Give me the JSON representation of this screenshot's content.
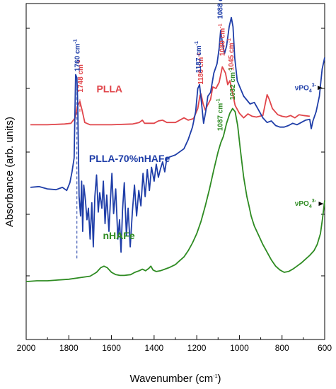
{
  "chart_data": {
    "type": "line",
    "xlabel_main": "Wavenumber (cm",
    "xlabel_sup": "-1",
    "xlabel_end": ")",
    "ylabel": "Absorbance (arb. units)",
    "xlim": [
      2000,
      600
    ],
    "x_reversed": true,
    "x_ticks": [
      "2000",
      "1800",
      "1600",
      "1400",
      "1200",
      "1000",
      "800",
      "600"
    ],
    "x_tick_values": [
      2000,
      1800,
      1600,
      1400,
      1200,
      1000,
      800,
      600
    ],
    "y_tick_labels_shown": false,
    "series": [
      {
        "name": "PLLA",
        "color": "#e0454a",
        "offset": 2.0,
        "points": [
          [
            1980,
            0.03
          ],
          [
            1900,
            0.03
          ],
          [
            1820,
            0.04
          ],
          [
            1790,
            0.05
          ],
          [
            1770,
            0.12
          ],
          [
            1760,
            0.27
          ],
          [
            1748,
            0.33
          ],
          [
            1738,
            0.22
          ],
          [
            1725,
            0.06
          ],
          [
            1700,
            0.03
          ],
          [
            1600,
            0.03
          ],
          [
            1500,
            0.04
          ],
          [
            1470,
            0.06
          ],
          [
            1455,
            0.09
          ],
          [
            1445,
            0.05
          ],
          [
            1400,
            0.05
          ],
          [
            1380,
            0.08
          ],
          [
            1360,
            0.09
          ],
          [
            1340,
            0.06
          ],
          [
            1300,
            0.06
          ],
          [
            1280,
            0.09
          ],
          [
            1260,
            0.12
          ],
          [
            1240,
            0.09
          ],
          [
            1215,
            0.11
          ],
          [
            1195,
            0.24
          ],
          [
            1185,
            0.41
          ],
          [
            1180,
            0.43
          ],
          [
            1170,
            0.3
          ],
          [
            1160,
            0.22
          ],
          [
            1150,
            0.28
          ],
          [
            1135,
            0.36
          ],
          [
            1125,
            0.52
          ],
          [
            1110,
            0.5
          ],
          [
            1095,
            0.58
          ],
          [
            1080,
            0.78
          ],
          [
            1065,
            0.7
          ],
          [
            1055,
            0.55
          ],
          [
            1045,
            0.6
          ],
          [
            1035,
            0.48
          ],
          [
            1020,
            0.28
          ],
          [
            1000,
            0.18
          ],
          [
            980,
            0.12
          ],
          [
            960,
            0.17
          ],
          [
            940,
            0.14
          ],
          [
            920,
            0.13
          ],
          [
            890,
            0.15
          ],
          [
            870,
            0.42
          ],
          [
            860,
            0.36
          ],
          [
            845,
            0.24
          ],
          [
            820,
            0.16
          ],
          [
            800,
            0.14
          ],
          [
            780,
            0.13
          ],
          [
            760,
            0.15
          ],
          [
            740,
            0.12
          ],
          [
            720,
            0.16
          ],
          [
            700,
            0.15
          ],
          [
            670,
            0.14
          ]
        ]
      },
      {
        "name": "PLLA-70%nHAFe",
        "color": "#1f3ea8",
        "offset": 1.0,
        "points": [
          [
            1980,
            0.22
          ],
          [
            1940,
            0.23
          ],
          [
            1900,
            0.2
          ],
          [
            1860,
            0.19
          ],
          [
            1830,
            0.22
          ],
          [
            1810,
            0.18
          ],
          [
            1795,
            0.28
          ],
          [
            1785,
            0.42
          ],
          [
            1775,
            0.6
          ],
          [
            1768,
            1.68
          ],
          [
            1762,
            1.64
          ],
          [
            1758,
            1.3
          ],
          [
            1752,
            0.1
          ],
          [
            1745,
            -0.15
          ],
          [
            1740,
            0.3
          ],
          [
            1735,
            -0.35
          ],
          [
            1730,
            0.25
          ],
          [
            1722,
            0.05
          ],
          [
            1715,
            -0.2
          ],
          [
            1708,
            -0.05
          ],
          [
            1700,
            -0.45
          ],
          [
            1692,
            0.02
          ],
          [
            1685,
            -0.55
          ],
          [
            1678,
            0.1
          ],
          [
            1670,
            0.38
          ],
          [
            1662,
            -0.1
          ],
          [
            1655,
            0.15
          ],
          [
            1645,
            -0.05
          ],
          [
            1638,
            0.3
          ],
          [
            1630,
            -0.25
          ],
          [
            1622,
            0.12
          ],
          [
            1612,
            -0.35
          ],
          [
            1605,
            0.05
          ],
          [
            1598,
            0.4
          ],
          [
            1590,
            -0.12
          ],
          [
            1580,
            0.2
          ],
          [
            1570,
            -0.45
          ],
          [
            1562,
            -0.2
          ],
          [
            1555,
            -0.62
          ],
          [
            1548,
            -0.08
          ],
          [
            1540,
            0.28
          ],
          [
            1530,
            -0.4
          ],
          [
            1522,
            -0.05
          ],
          [
            1512,
            -0.55
          ],
          [
            1502,
            -0.1
          ],
          [
            1492,
            0.25
          ],
          [
            1482,
            -0.15
          ],
          [
            1472,
            0.18
          ],
          [
            1462,
            -0.02
          ],
          [
            1452,
            0.4
          ],
          [
            1442,
            0.1
          ],
          [
            1432,
            0.45
          ],
          [
            1422,
            0.18
          ],
          [
            1412,
            0.48
          ],
          [
            1400,
            0.3
          ],
          [
            1390,
            0.52
          ],
          [
            1380,
            0.35
          ],
          [
            1370,
            0.46
          ],
          [
            1360,
            0.55
          ],
          [
            1350,
            0.42
          ],
          [
            1340,
            0.6
          ],
          [
            1320,
            0.62
          ],
          [
            1300,
            0.64
          ],
          [
            1280,
            0.68
          ],
          [
            1260,
            0.72
          ],
          [
            1240,
            0.84
          ],
          [
            1220,
            1.0
          ],
          [
            1205,
            1.2
          ],
          [
            1195,
            1.5
          ],
          [
            1187,
            1.55
          ],
          [
            1178,
            1.32
          ],
          [
            1168,
            1.05
          ],
          [
            1158,
            1.2
          ],
          [
            1148,
            1.4
          ],
          [
            1135,
            1.45
          ],
          [
            1120,
            1.7
          ],
          [
            1105,
            1.82
          ],
          [
            1095,
            2.02
          ],
          [
            1088,
            2.25
          ],
          [
            1080,
            2.1
          ],
          [
            1070,
            1.95
          ],
          [
            1060,
            2.05
          ],
          [
            1048,
            2.3
          ],
          [
            1038,
            2.42
          ],
          [
            1030,
            2.3
          ],
          [
            1022,
            1.9
          ],
          [
            1010,
            1.6
          ],
          [
            995,
            1.5
          ],
          [
            980,
            1.4
          ],
          [
            965,
            1.35
          ],
          [
            950,
            1.3
          ],
          [
            930,
            1.32
          ],
          [
            910,
            1.22
          ],
          [
            890,
            1.12
          ],
          [
            870,
            1.06
          ],
          [
            850,
            1.08
          ],
          [
            830,
            1.02
          ],
          [
            810,
            1.0
          ],
          [
            790,
            1.0
          ],
          [
            770,
            1.02
          ],
          [
            750,
            1.05
          ],
          [
            730,
            1.03
          ],
          [
            710,
            1.06
          ],
          [
            690,
            1.09
          ],
          [
            670,
            1.1
          ],
          [
            663,
            0.98
          ],
          [
            655,
            1.08
          ],
          [
            640,
            1.2
          ],
          [
            625,
            1.4
          ],
          [
            612,
            1.75
          ],
          [
            600,
            1.9
          ]
        ]
      },
      {
        "name": "nHAFe",
        "color": "#2e8b22",
        "offset": 0.0,
        "points": [
          [
            2000,
            0.0
          ],
          [
            1950,
            0.01
          ],
          [
            1900,
            0.01
          ],
          [
            1850,
            0.02
          ],
          [
            1800,
            0.03
          ],
          [
            1750,
            0.05
          ],
          [
            1700,
            0.07
          ],
          [
            1670,
            0.12
          ],
          [
            1650,
            0.18
          ],
          [
            1635,
            0.2
          ],
          [
            1620,
            0.18
          ],
          [
            1600,
            0.12
          ],
          [
            1580,
            0.09
          ],
          [
            1560,
            0.08
          ],
          [
            1540,
            0.08
          ],
          [
            1510,
            0.09
          ],
          [
            1490,
            0.12
          ],
          [
            1470,
            0.14
          ],
          [
            1455,
            0.16
          ],
          [
            1440,
            0.14
          ],
          [
            1425,
            0.17
          ],
          [
            1415,
            0.2
          ],
          [
            1405,
            0.15
          ],
          [
            1390,
            0.13
          ],
          [
            1370,
            0.14
          ],
          [
            1350,
            0.16
          ],
          [
            1330,
            0.18
          ],
          [
            1300,
            0.22
          ],
          [
            1280,
            0.27
          ],
          [
            1260,
            0.32
          ],
          [
            1240,
            0.4
          ],
          [
            1220,
            0.5
          ],
          [
            1200,
            0.62
          ],
          [
            1180,
            0.78
          ],
          [
            1160,
            0.98
          ],
          [
            1140,
            1.2
          ],
          [
            1120,
            1.45
          ],
          [
            1100,
            1.68
          ],
          [
            1087,
            1.8
          ],
          [
            1075,
            1.88
          ],
          [
            1060,
            2.05
          ],
          [
            1045,
            2.18
          ],
          [
            1032,
            2.24
          ],
          [
            1020,
            2.2
          ],
          [
            1008,
            2.02
          ],
          [
            995,
            1.7
          ],
          [
            980,
            1.35
          ],
          [
            965,
            1.1
          ],
          [
            955,
            0.98
          ],
          [
            945,
            0.85
          ],
          [
            930,
            0.72
          ],
          [
            910,
            0.6
          ],
          [
            890,
            0.48
          ],
          [
            870,
            0.38
          ],
          [
            850,
            0.28
          ],
          [
            830,
            0.2
          ],
          [
            810,
            0.15
          ],
          [
            790,
            0.12
          ],
          [
            770,
            0.13
          ],
          [
            750,
            0.16
          ],
          [
            730,
            0.2
          ],
          [
            710,
            0.24
          ],
          [
            690,
            0.29
          ],
          [
            670,
            0.34
          ],
          [
            650,
            0.4
          ],
          [
            635,
            0.48
          ],
          [
            620,
            0.62
          ],
          [
            610,
            0.82
          ],
          [
            600,
            1.05
          ]
        ]
      }
    ],
    "series_labels": [
      {
        "name": "PLLA",
        "color": "#e0454a",
        "x": 1670,
        "y": 2.45
      },
      {
        "name": "PLLA-70%nHAFe",
        "color": "#1f3ea8",
        "x": 1705,
        "y": 1.55
      },
      {
        "name": "nHAFe",
        "color": "#2e8b22",
        "x": 1640,
        "y": 0.55
      }
    ],
    "peak_labels": [
      {
        "text": "1748 cm",
        "sup": "-1",
        "color": "#e0454a",
        "x": 1745,
        "y": 2.45
      },
      {
        "text": "1180 cm",
        "sup": "-1",
        "color": "#e0454a",
        "x": 1180,
        "y": 2.55
      },
      {
        "text": "1080 cm",
        "sup": "-1",
        "color": "#e0454a",
        "x": 1080,
        "y": 2.92
      },
      {
        "text": "1045 cm",
        "sup": "-1",
        "color": "#e0454a",
        "x": 1038,
        "y": 2.73
      },
      {
        "text": "1760 cm",
        "sup": "-1",
        "color": "#1f3ea8",
        "x": 1760,
        "y": 2.72
      },
      {
        "text": "1187 cm",
        "sup": "-1",
        "color": "#1f3ea8",
        "x": 1190,
        "y": 2.7
      },
      {
        "text": "1088 cm",
        "sup": "-1",
        "color": "#1f3ea8",
        "x": 1090,
        "y": 3.4
      },
      {
        "text": "1087 cm",
        "sup": "-1",
        "color": "#2e8b22",
        "x": 1090,
        "y": 1.95
      },
      {
        "text": "1032 cm",
        "sup": "-1",
        "color": "#2e8b22",
        "x": 1032,
        "y": 2.35
      }
    ],
    "vpo_labels": [
      {
        "text": "νPO",
        "sub": "4",
        "sup": "3-",
        "color": "#1f3ea8",
        "x": 740,
        "y": 2.48,
        "arrow_to_x": 610
      },
      {
        "text": "νPO",
        "sub": "4",
        "sup": "3-",
        "color": "#2e8b22",
        "x": 740,
        "y": 0.98,
        "arrow_to_x": 605
      }
    ],
    "dashed_markers": [
      {
        "x": 1748,
        "y_from": 2.2,
        "y_to": 2.36,
        "color": "#e0454a"
      },
      {
        "x": 1762,
        "y_from": 0.3,
        "y_to": 2.5,
        "color": "#1f3ea8"
      }
    ]
  }
}
